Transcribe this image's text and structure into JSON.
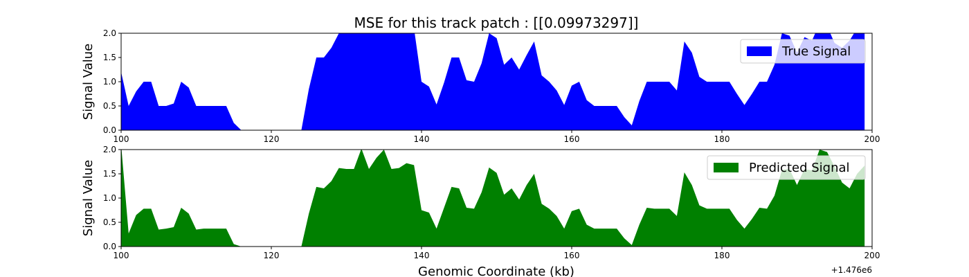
{
  "figure": {
    "title": "MSE for this track patch : [[0.09973297]]",
    "xlabel": "Genomic Coordinate (kb)",
    "x_offset_label": "+1.476e6"
  },
  "chart_data": [
    {
      "type": "area",
      "title": "MSE for this track patch : [[0.09973297]]",
      "xlabel": "",
      "ylabel": "Signal Value",
      "xlim": [
        100,
        200
      ],
      "ylim": [
        0,
        2.0
      ],
      "x_ticks": [
        "100",
        "120",
        "140",
        "160",
        "180",
        "200"
      ],
      "y_ticks": [
        "0.0",
        "0.5",
        "1.0",
        "1.5",
        "2.0"
      ],
      "legend_position": "top-right",
      "color": "#0000ff",
      "series": [
        {
          "name": "True Signal",
          "x": [
            100,
            101,
            102,
            103,
            104,
            105,
            106,
            107,
            108,
            109,
            110,
            111,
            112,
            113,
            114,
            115,
            116,
            117,
            118,
            119,
            120,
            121,
            122,
            123,
            124,
            125,
            126,
            127,
            128,
            129,
            130,
            131,
            132,
            133,
            134,
            135,
            136,
            137,
            138,
            139,
            140,
            141,
            142,
            143,
            144,
            145,
            146,
            147,
            148,
            149,
            150,
            151,
            152,
            153,
            154,
            155,
            156,
            157,
            158,
            159,
            160,
            161,
            162,
            163,
            164,
            165,
            166,
            167,
            168,
            169,
            170,
            171,
            172,
            173,
            174,
            175,
            176,
            177,
            178,
            179,
            180,
            181,
            182,
            183,
            184,
            185,
            186,
            187,
            188,
            189,
            190,
            191,
            192,
            193,
            194,
            195,
            196,
            197,
            198,
            199
          ],
          "values": [
            1.2,
            0.5,
            0.8,
            1.0,
            1.0,
            0.5,
            0.5,
            0.55,
            1.0,
            0.88,
            0.5,
            0.5,
            0.5,
            0.5,
            0.5,
            0.15,
            0.0,
            0.0,
            0.0,
            0.0,
            0.0,
            0.0,
            0.0,
            0.0,
            0.0,
            0.85,
            1.5,
            1.5,
            1.7,
            2.0,
            2.0,
            2.1,
            2.1,
            2.1,
            2.1,
            2.0,
            2.0,
            2.1,
            2.1,
            2.1,
            1.0,
            0.9,
            0.53,
            0.98,
            1.5,
            1.5,
            1.03,
            1.0,
            1.38,
            2.0,
            1.9,
            1.35,
            1.5,
            1.25,
            1.55,
            1.83,
            1.13,
            1.0,
            0.82,
            0.52,
            0.92,
            1.0,
            0.62,
            0.5,
            0.5,
            0.5,
            0.5,
            0.27,
            0.1,
            0.6,
            1.0,
            1.0,
            1.0,
            1.0,
            0.82,
            1.83,
            1.6,
            1.1,
            1.0,
            1.0,
            1.0,
            1.0,
            0.75,
            0.52,
            0.75,
            1.0,
            1.0,
            1.35,
            2.0,
            1.95,
            1.6,
            1.92,
            1.85,
            2.2,
            2.15,
            1.8,
            1.7,
            1.85,
            2.1,
            2.1
          ]
        }
      ]
    },
    {
      "type": "area",
      "title": "",
      "xlabel": "Genomic Coordinate (kb)",
      "ylabel": "Signal Value",
      "xlim": [
        100,
        200
      ],
      "ylim": [
        0,
        2.0
      ],
      "x_ticks": [
        "100",
        "120",
        "140",
        "160",
        "180",
        "200"
      ],
      "y_ticks": [
        "0.0",
        "0.5",
        "1.0",
        "1.5",
        "2.0"
      ],
      "legend_position": "top-right",
      "color": "#008000",
      "series": [
        {
          "name": "Predicted Signal",
          "x": [
            100,
            101,
            102,
            103,
            104,
            105,
            106,
            107,
            108,
            109,
            110,
            111,
            112,
            113,
            114,
            115,
            116,
            117,
            118,
            119,
            120,
            121,
            122,
            123,
            124,
            125,
            126,
            127,
            128,
            129,
            130,
            131,
            132,
            133,
            134,
            135,
            136,
            137,
            138,
            139,
            140,
            141,
            142,
            143,
            144,
            145,
            146,
            147,
            148,
            149,
            150,
            151,
            152,
            153,
            154,
            155,
            156,
            157,
            158,
            159,
            160,
            161,
            162,
            163,
            164,
            165,
            166,
            167,
            168,
            169,
            170,
            171,
            172,
            173,
            174,
            175,
            176,
            177,
            178,
            179,
            180,
            181,
            182,
            183,
            184,
            185,
            186,
            187,
            188,
            189,
            190,
            191,
            192,
            193,
            194,
            195,
            196,
            197,
            198,
            199
          ],
          "values": [
            2.1,
            0.27,
            0.65,
            0.78,
            0.78,
            0.35,
            0.37,
            0.4,
            0.8,
            0.68,
            0.35,
            0.37,
            0.37,
            0.37,
            0.37,
            0.05,
            0.0,
            0.0,
            0.0,
            0.0,
            0.0,
            0.0,
            0.0,
            0.0,
            0.0,
            0.68,
            1.23,
            1.2,
            1.35,
            1.62,
            1.6,
            1.6,
            2.02,
            1.6,
            1.83,
            2.0,
            1.6,
            1.62,
            1.72,
            1.68,
            0.75,
            0.7,
            0.37,
            0.8,
            1.23,
            1.2,
            0.8,
            0.78,
            1.12,
            1.63,
            1.52,
            1.07,
            1.2,
            0.97,
            1.27,
            1.5,
            0.88,
            0.78,
            0.63,
            0.37,
            0.73,
            0.78,
            0.45,
            0.37,
            0.37,
            0.37,
            0.37,
            0.17,
            0.03,
            0.45,
            0.8,
            0.78,
            0.78,
            0.78,
            0.63,
            1.53,
            1.27,
            0.85,
            0.78,
            0.78,
            0.78,
            0.78,
            0.55,
            0.37,
            0.57,
            0.8,
            0.78,
            1.05,
            1.58,
            1.6,
            1.27,
            1.6,
            1.57,
            2.0,
            1.95,
            1.65,
            1.32,
            1.2,
            1.5,
            1.67
          ]
        }
      ]
    }
  ]
}
